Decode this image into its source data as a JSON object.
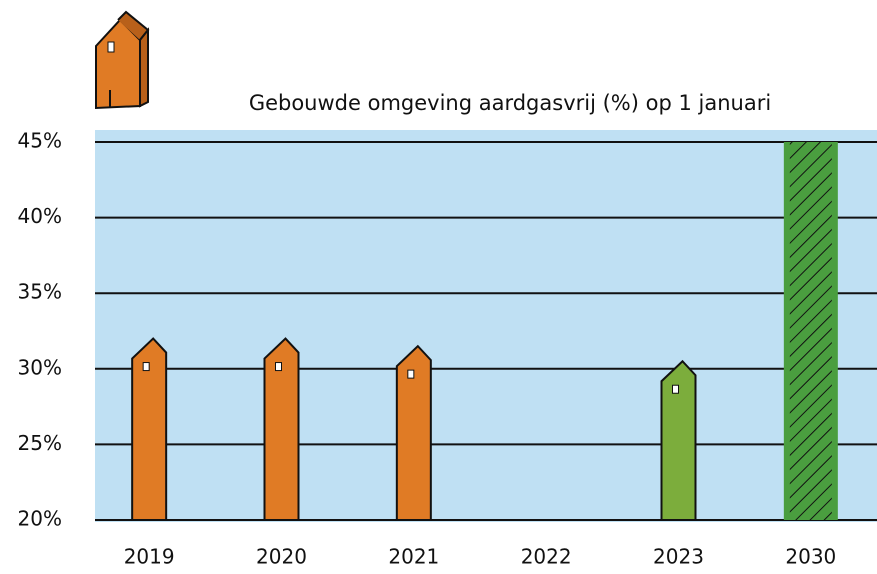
{
  "chart_data": {
    "type": "bar",
    "title": "Gebouwde omgeving aardgasvrij (%) op 1 januari",
    "categories": [
      "2019",
      "2020",
      "2021",
      "2022",
      "2023",
      "2030"
    ],
    "values": [
      32,
      32,
      31.5,
      null,
      30.5,
      45
    ],
    "colors": [
      "#e07b25",
      "#e07b25",
      "#e07b25",
      null,
      "#7cad3c",
      "#4a9e3f"
    ],
    "hatched": [
      false,
      false,
      false,
      false,
      false,
      true
    ],
    "ylim": [
      20,
      45
    ],
    "yticks": [
      {
        "value": 20,
        "label": "20%"
      },
      {
        "value": 25,
        "label": "25%"
      },
      {
        "value": 30,
        "label": "30%"
      },
      {
        "value": 35,
        "label": "35%"
      },
      {
        "value": 40,
        "label": "40%"
      },
      {
        "value": 45,
        "label": "45%"
      }
    ],
    "grid": true,
    "background": "#bfe0f3"
  }
}
